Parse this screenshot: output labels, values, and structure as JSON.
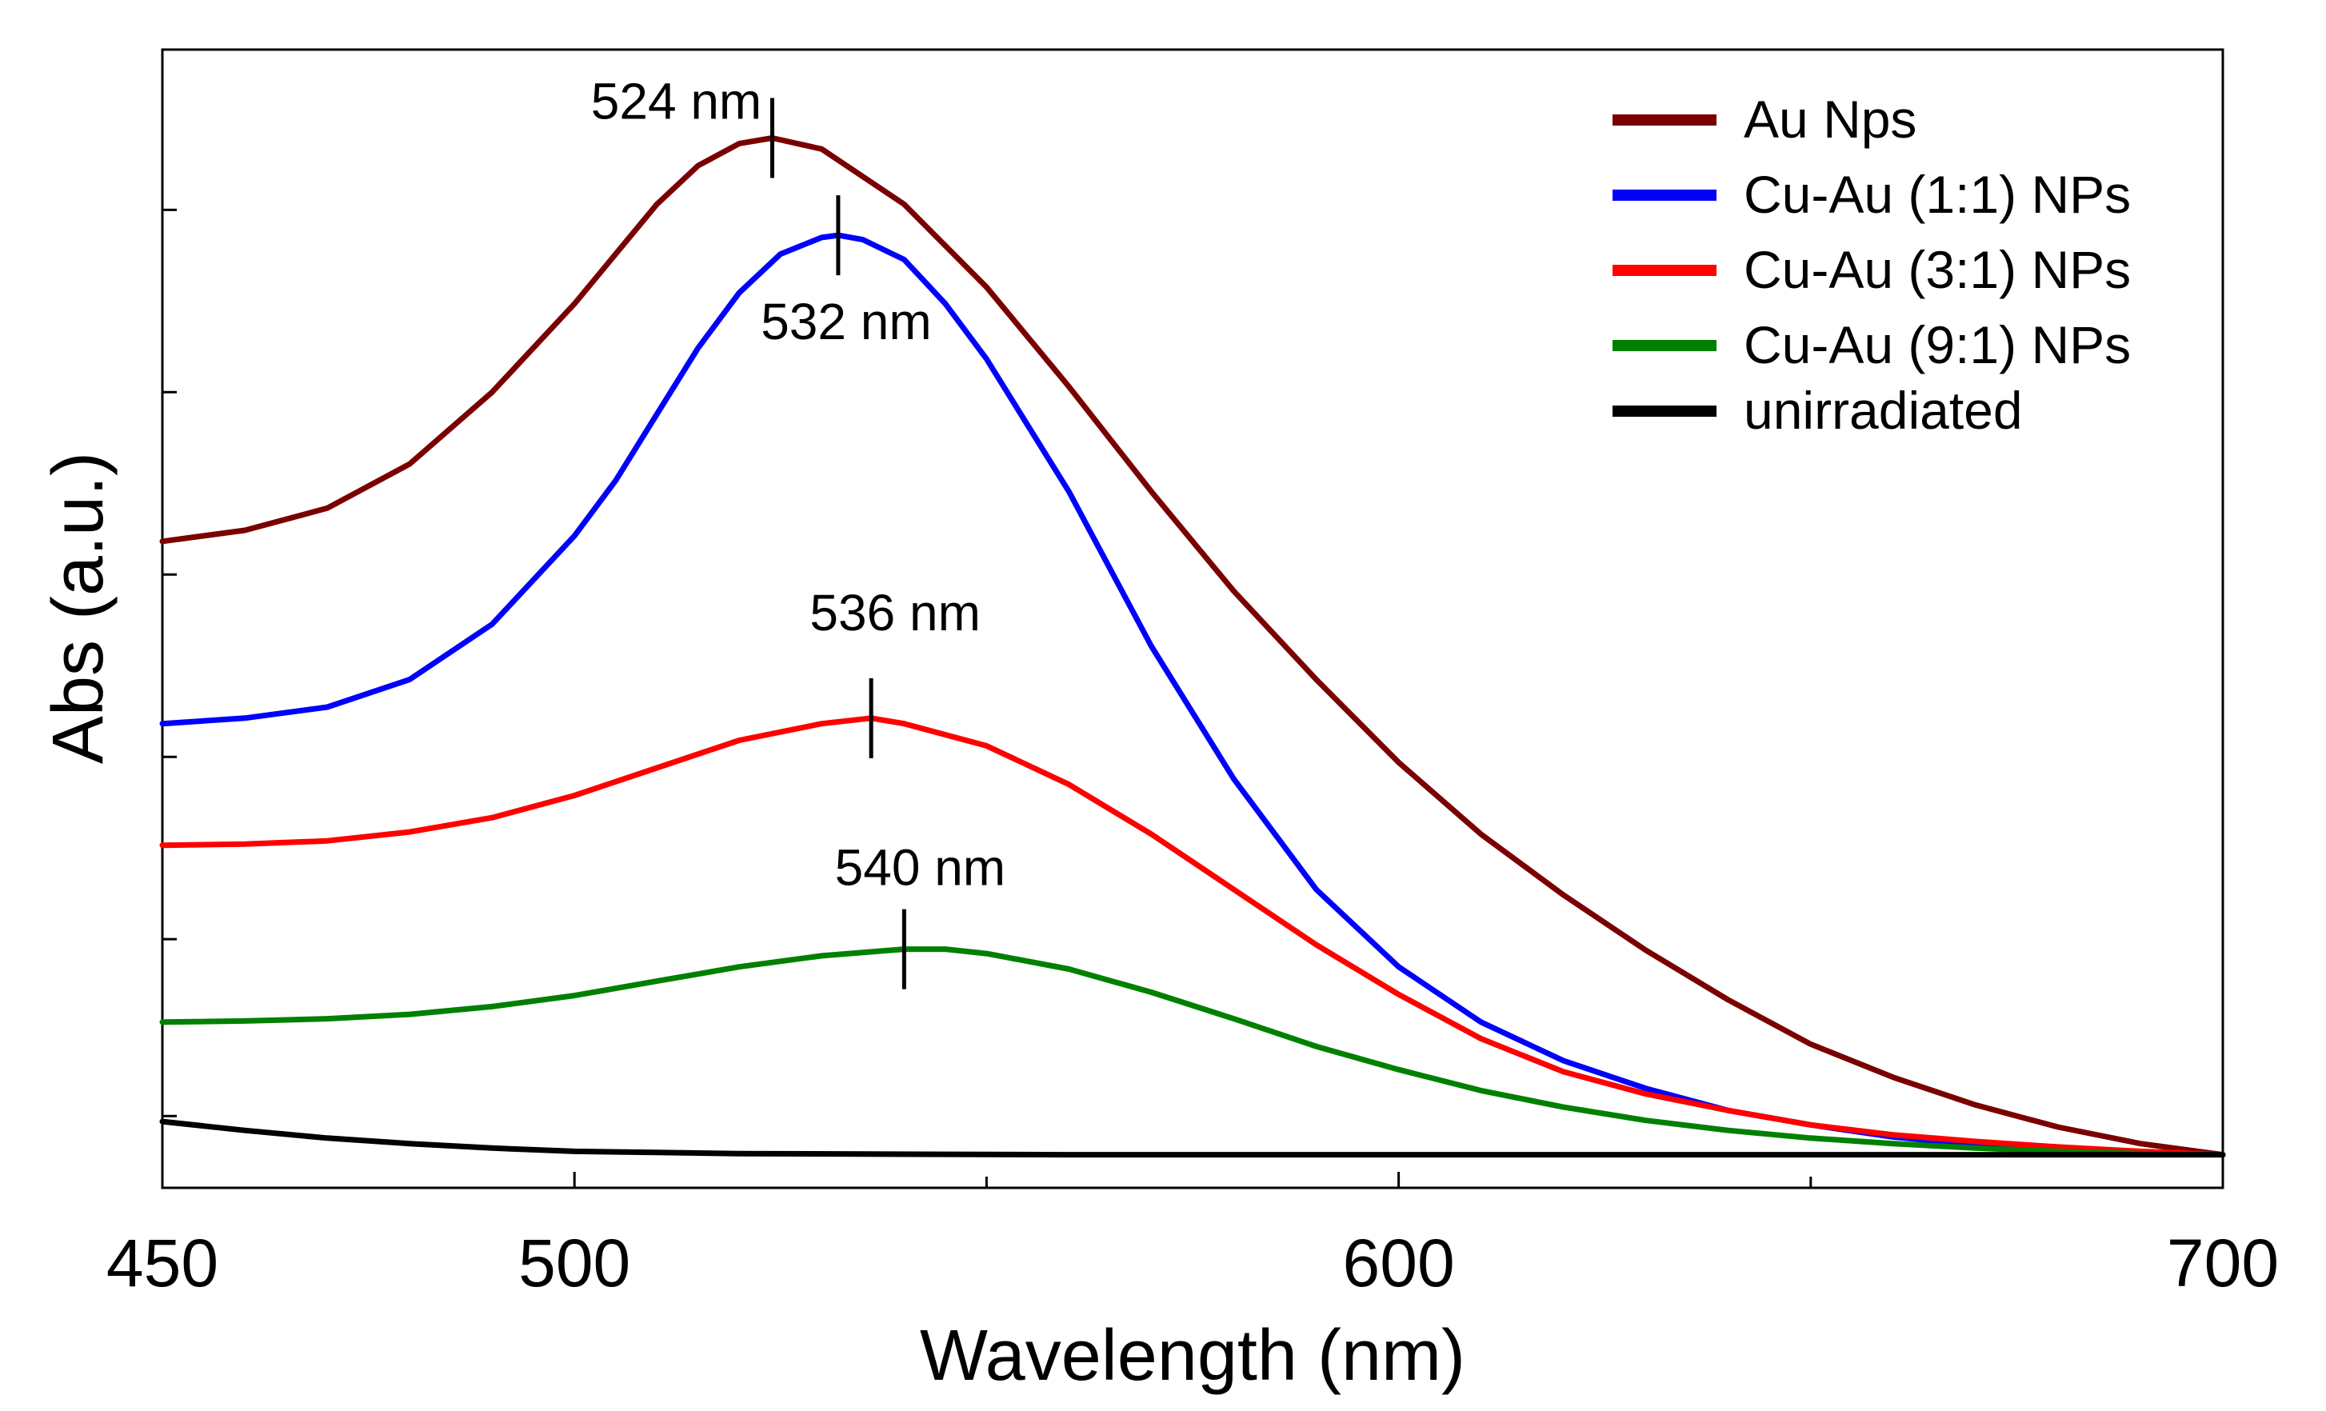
{
  "chart_data": {
    "type": "line",
    "title": "",
    "xlabel": "Wavelength (nm)",
    "ylabel": "Abs (a.u.)",
    "xlim": [
      450,
      700
    ],
    "ylim": [
      -0.03,
      1.0
    ],
    "x_ticks": [
      450,
      500,
      600,
      700
    ],
    "x_minor_ticks": [
      550,
      650
    ],
    "y_ticks_unlabeled": [
      0.035,
      0.195,
      0.36,
      0.525,
      0.69,
      0.855
    ],
    "grid": false,
    "legend_position": "top-right",
    "series": [
      {
        "name": "Au Nps",
        "color": "#7a0000",
        "x": [
          450,
          460,
          470,
          480,
          490,
          500,
          510,
          515,
          520,
          524,
          530,
          540,
          550,
          560,
          570,
          580,
          590,
          600,
          610,
          620,
          630,
          640,
          650,
          660,
          670,
          680,
          690,
          700
        ],
        "y": [
          0.555,
          0.565,
          0.585,
          0.625,
          0.69,
          0.77,
          0.86,
          0.895,
          0.915,
          0.92,
          0.91,
          0.86,
          0.785,
          0.695,
          0.6,
          0.51,
          0.43,
          0.355,
          0.29,
          0.235,
          0.185,
          0.14,
          0.1,
          0.07,
          0.045,
          0.025,
          0.01,
          0.0
        ]
      },
      {
        "name": "Cu-Au (1:1) NPs",
        "color": "#0000ff",
        "x": [
          450,
          460,
          470,
          480,
          490,
          500,
          505,
          510,
          515,
          520,
          525,
          530,
          532,
          535,
          540,
          545,
          550,
          560,
          570,
          580,
          590,
          600,
          610,
          620,
          630,
          640,
          650,
          660,
          670,
          680,
          690,
          700
        ],
        "y": [
          0.39,
          0.395,
          0.405,
          0.43,
          0.48,
          0.56,
          0.61,
          0.67,
          0.73,
          0.78,
          0.815,
          0.83,
          0.832,
          0.828,
          0.81,
          0.77,
          0.72,
          0.6,
          0.46,
          0.34,
          0.24,
          0.17,
          0.12,
          0.085,
          0.06,
          0.04,
          0.027,
          0.016,
          0.009,
          0.005,
          0.002,
          0.0
        ]
      },
      {
        "name": "Cu-Au (3:1) NPs",
        "color": "#ff0000",
        "x": [
          450,
          460,
          470,
          480,
          490,
          500,
          510,
          520,
          530,
          536,
          540,
          550,
          560,
          570,
          580,
          590,
          600,
          610,
          620,
          630,
          640,
          650,
          660,
          670,
          680,
          690,
          700
        ],
        "y": [
          0.28,
          0.281,
          0.284,
          0.292,
          0.305,
          0.325,
          0.35,
          0.375,
          0.39,
          0.395,
          0.39,
          0.37,
          0.335,
          0.29,
          0.24,
          0.19,
          0.145,
          0.105,
          0.075,
          0.055,
          0.04,
          0.027,
          0.018,
          0.012,
          0.007,
          0.003,
          0.0
        ]
      },
      {
        "name": "Cu-Au (9:1) NPs",
        "color": "#008000",
        "x": [
          450,
          460,
          470,
          480,
          490,
          500,
          510,
          520,
          530,
          540,
          545,
          550,
          560,
          570,
          580,
          590,
          600,
          610,
          620,
          630,
          640,
          650,
          660,
          670,
          680,
          690,
          700
        ],
        "y": [
          0.12,
          0.121,
          0.123,
          0.127,
          0.134,
          0.144,
          0.157,
          0.17,
          0.18,
          0.186,
          0.186,
          0.182,
          0.168,
          0.147,
          0.123,
          0.098,
          0.077,
          0.058,
          0.043,
          0.031,
          0.022,
          0.015,
          0.01,
          0.006,
          0.003,
          0.001,
          0.0
        ]
      },
      {
        "name": "unirradiated",
        "color": "#000000",
        "x": [
          450,
          460,
          470,
          480,
          490,
          500,
          510,
          520,
          560,
          600,
          650,
          700
        ],
        "y": [
          0.03,
          0.022,
          0.015,
          0.01,
          0.006,
          0.003,
          0.002,
          0.001,
          0.0,
          0.0,
          0.0,
          0.0
        ]
      }
    ],
    "annotations": [
      {
        "text": "524 nm",
        "x": 524,
        "series": 0
      },
      {
        "text": "532 nm",
        "x": 532,
        "series": 1
      },
      {
        "text": "536 nm",
        "x": 536,
        "series": 2
      },
      {
        "text": "540 nm",
        "x": 540,
        "series": 3
      }
    ]
  }
}
